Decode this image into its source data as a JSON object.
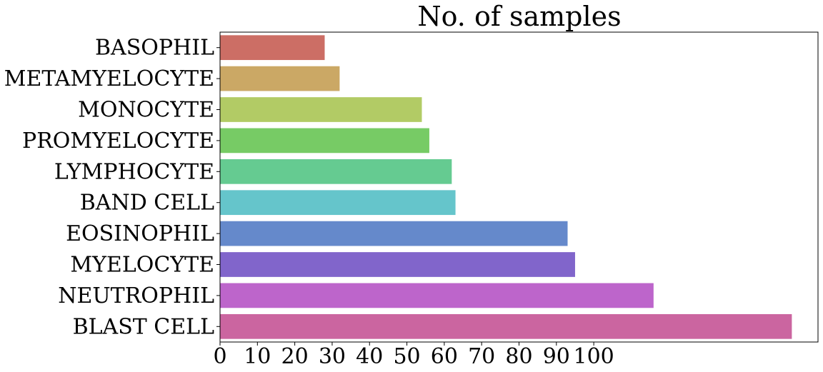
{
  "chart_data": {
    "type": "bar",
    "orientation": "horizontal",
    "title": "No. of samples",
    "xlabel": "",
    "ylabel": "",
    "categories": [
      "BASOPHIL",
      "METAMYELOCYTE",
      "MONOCYTE",
      "PROMYELOCYTE",
      "LYMPHOCYTE",
      "BAND CELL",
      "EOSINOPHIL",
      "MYELOCYTE",
      "NEUTROPHIL",
      "BLAST CELL"
    ],
    "values": [
      28,
      32,
      54,
      56,
      62,
      63,
      93,
      95,
      116,
      153
    ],
    "colors": [
      "#cc6e65",
      "#cba865",
      "#b2cb65",
      "#77cb65",
      "#65cb91",
      "#65c5cb",
      "#6589cb",
      "#8165cb",
      "#bd65cb",
      "#cb65a0"
    ],
    "xticks": [
      0,
      10,
      20,
      30,
      40,
      50,
      60,
      70,
      80,
      90,
      100
    ],
    "xlim": [
      0,
      160
    ],
    "grid": false
  }
}
